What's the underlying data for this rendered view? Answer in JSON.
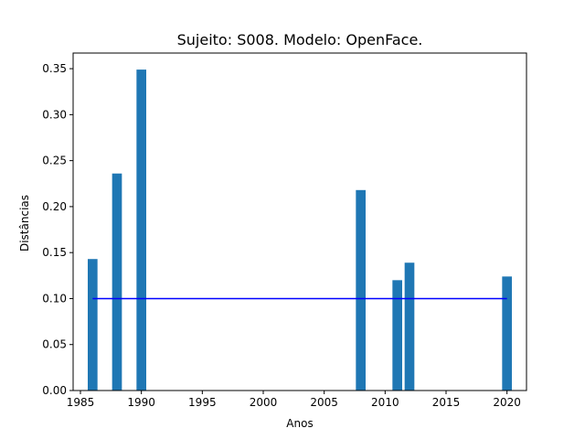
{
  "chart_data": {
    "type": "bar",
    "title": "Sujeito: S008. Modelo: OpenFace.",
    "xlabel": "Anos",
    "ylabel": "Distâncias",
    "xlim": [
      1984.4,
      2021.6
    ],
    "ylim": [
      0,
      0.367
    ],
    "xticks": [
      1985,
      1990,
      1995,
      2000,
      2005,
      2010,
      2015,
      2020
    ],
    "yticks": [
      0.0,
      0.05,
      0.1,
      0.15,
      0.2,
      0.25,
      0.3,
      0.35
    ],
    "ytick_decimals": 2,
    "bar_width_years": 0.8,
    "grid": false,
    "series": [
      {
        "x": [
          1986,
          1988,
          1990,
          2008,
          2011,
          2012,
          2020
        ],
        "values": [
          0.143,
          0.236,
          0.349,
          0.218,
          0.12,
          0.139,
          0.124
        ],
        "color": "#1f77b4"
      }
    ],
    "reference_line": {
      "y": 0.1,
      "x_start": 1986,
      "x_end": 2020,
      "color": "#0000ff"
    }
  }
}
